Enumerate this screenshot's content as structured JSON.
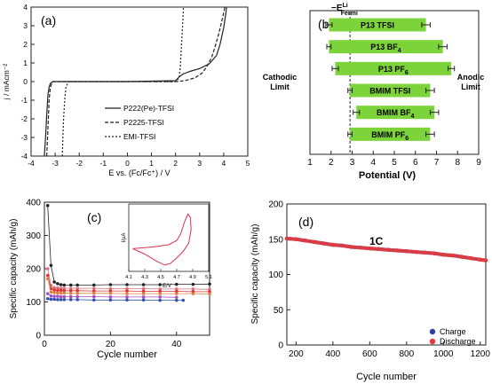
{
  "chart_data": [
    {
      "panel_label": "(a)",
      "type": "line",
      "xlabel": "E vs. (Fc/Fc⁺) / V",
      "ylabel": "j / mAcm⁻²",
      "xlim": [
        -4,
        5
      ],
      "ylim": [
        -4,
        4
      ],
      "xticks": [
        "-4",
        "-3",
        "-2",
        "-1",
        "0",
        "1",
        "2",
        "3",
        "4",
        "5"
      ],
      "yticks": [
        "-4",
        "-3",
        "-2",
        "-1",
        "0",
        "1",
        "2",
        "3",
        "4"
      ],
      "legend_placement": "bottom-right",
      "series": [
        {
          "name": "P222(Pe)-TFSI",
          "style": "solid",
          "x": [
            -3.45,
            -3.4,
            -3.35,
            -3.3,
            -3.25,
            -3.2,
            -3.1,
            -2.5,
            0.0,
            2.0,
            2.15,
            2.3,
            2.6,
            3.0,
            3.4,
            3.7,
            3.85,
            4.0,
            4.08,
            4.12
          ],
          "y": [
            -4.0,
            -3.0,
            -1.8,
            -0.7,
            -0.3,
            -0.1,
            0.0,
            0.0,
            0.0,
            0.05,
            0.25,
            0.4,
            0.55,
            0.7,
            0.95,
            1.4,
            2.0,
            2.9,
            3.6,
            4.0
          ]
        },
        {
          "name": "P2225-TFSI",
          "style": "dashed",
          "x": [
            -3.35,
            -3.3,
            -3.25,
            -3.2,
            -3.1,
            -2.5,
            0.0,
            2.0,
            2.4,
            2.8,
            3.1,
            3.3,
            3.5,
            3.65,
            3.8,
            3.95,
            4.05
          ],
          "y": [
            -4.0,
            -2.5,
            -1.0,
            -0.3,
            0.0,
            0.0,
            0.0,
            0.0,
            0.05,
            0.2,
            0.45,
            0.8,
            1.3,
            1.9,
            2.6,
            3.4,
            4.0
          ]
        },
        {
          "name": "EMI-TFSI",
          "style": "dotted",
          "x": [
            -2.7,
            -2.68,
            -2.65,
            -2.6,
            -2.55,
            -2.45,
            -2.0,
            0.0,
            2.0,
            2.15,
            2.2,
            2.25,
            2.3,
            2.33
          ],
          "y": [
            -4.0,
            -3.0,
            -2.0,
            -0.9,
            -0.3,
            0.0,
            0.0,
            0.0,
            0.0,
            0.2,
            0.8,
            2.0,
            3.2,
            4.0
          ]
        }
      ]
    },
    {
      "panel_label": "(b)",
      "type": "bar",
      "orientation": "horizontal",
      "xlabel": "Potential (V)",
      "xlim": [
        1,
        9
      ],
      "xticks": [
        "1",
        "2",
        "3",
        "4",
        "5",
        "6",
        "7",
        "8",
        "9"
      ],
      "grid": false,
      "bar_color": "#7dd43a",
      "fermi_label": "E",
      "fermi_superscript": "Li",
      "fermi_subscript": "Fermi",
      "fermi_value": 2.9,
      "cathodic_label": [
        "Cathodic",
        "Limit"
      ],
      "anodic_label": [
        "Anodic",
        "Limit"
      ],
      "categories": [
        {
          "main": "P13 TFSI",
          "sub": ""
        },
        {
          "main": "P13 BF",
          "sub": "4"
        },
        {
          "main": "P13 PF",
          "sub": "6"
        },
        {
          "main": "BMIM TFSI",
          "sub": ""
        },
        {
          "main": "BMIM BF",
          "sub": "4"
        },
        {
          "main": "BMIM PF",
          "sub": "6"
        }
      ],
      "cathodic_limit": [
        1.9,
        1.9,
        2.2,
        2.9,
        3.2,
        2.9
      ],
      "anodic_limit": [
        6.5,
        7.3,
        7.7,
        6.7,
        6.9,
        6.7
      ],
      "cathodic_error": [
        0.15,
        0.1,
        0.15,
        0.1,
        0.15,
        0.1
      ],
      "anodic_error": [
        0.2,
        0.2,
        0.15,
        0.2,
        0.2,
        0.2
      ]
    },
    {
      "panel_label": "(c)",
      "type": "scatter",
      "xlabel": "Cycle number",
      "ylabel": "Specific capacity (mAh/g)",
      "xlim": [
        0,
        50
      ],
      "ylim": [
        0,
        400
      ],
      "xticks": [
        "0",
        "20",
        "40"
      ],
      "yticks": [
        "0",
        "100",
        "200",
        "300",
        "400"
      ],
      "series": [
        {
          "color": "#222222",
          "x": [
            1,
            2,
            3,
            4,
            5,
            6,
            8,
            10,
            15,
            20,
            25,
            30,
            35,
            40,
            45,
            50
          ],
          "y": [
            390,
            210,
            160,
            155,
            152,
            151,
            151,
            151,
            151,
            152,
            152,
            152,
            152,
            153,
            153,
            154
          ]
        },
        {
          "color": "#d9707a",
          "x": [
            1,
            2,
            3,
            4,
            5,
            6,
            8,
            10,
            15,
            20,
            25,
            30,
            35,
            40,
            45,
            50
          ],
          "y": [
            200,
            150,
            143,
            142,
            141,
            141,
            141,
            141,
            141,
            140,
            140,
            140,
            139,
            139,
            139,
            138
          ]
        },
        {
          "color": "#e03030",
          "x": [
            1,
            2,
            3,
            4,
            5,
            6,
            8,
            10,
            15,
            20,
            25,
            30,
            35,
            40,
            45,
            50
          ],
          "y": [
            180,
            140,
            136,
            135,
            135,
            134,
            134,
            134,
            133,
            133,
            133,
            132,
            132,
            132,
            131,
            131
          ]
        },
        {
          "color": "#e08040",
          "x": [
            1,
            2,
            3,
            4,
            5,
            6,
            8,
            10,
            15,
            20,
            25,
            30,
            35,
            40,
            45,
            50
          ],
          "y": [
            170,
            130,
            128,
            127,
            127,
            127,
            126,
            126,
            126,
            126,
            125,
            125,
            125,
            125,
            125,
            124
          ]
        },
        {
          "color": "#a050c0",
          "x": [
            1,
            2,
            3,
            4,
            5,
            6,
            8,
            10,
            15,
            20,
            25,
            30,
            35,
            40
          ],
          "y": [
            125,
            118,
            117,
            117,
            116,
            116,
            116,
            116,
            116,
            115,
            115,
            115,
            115,
            114
          ]
        },
        {
          "color": "#3050b0",
          "x": [
            1,
            2,
            3,
            4,
            5,
            6,
            8,
            10,
            15,
            20,
            25,
            30,
            35,
            40,
            42
          ],
          "y": [
            110,
            108,
            108,
            107,
            107,
            107,
            107,
            107,
            106,
            106,
            106,
            106,
            105,
            105,
            105
          ]
        }
      ],
      "inset": {
        "type": "line",
        "xlabel": "E/V",
        "ylabel": "I/μA",
        "xlim": [
          4.1,
          5.1
        ],
        "xticks": [
          "4.1",
          "4.3",
          "4.5",
          "4.7",
          "4.9",
          "5.1"
        ],
        "color": "#e03050",
        "loop": [
          {
            "x": 4.15,
            "y": 0.35
          },
          {
            "x": 4.4,
            "y": 0.38
          },
          {
            "x": 4.6,
            "y": 0.42
          },
          {
            "x": 4.7,
            "y": 0.5
          },
          {
            "x": 4.75,
            "y": 0.62
          },
          {
            "x": 4.8,
            "y": 0.85
          },
          {
            "x": 4.84,
            "y": 0.98
          },
          {
            "x": 4.87,
            "y": 0.92
          },
          {
            "x": 4.88,
            "y": 0.7
          },
          {
            "x": 4.85,
            "y": 0.45
          },
          {
            "x": 4.78,
            "y": 0.3
          },
          {
            "x": 4.7,
            "y": 0.18
          },
          {
            "x": 4.62,
            "y": 0.08
          },
          {
            "x": 4.55,
            "y": 0.05
          },
          {
            "x": 4.45,
            "y": 0.12
          },
          {
            "x": 4.3,
            "y": 0.25
          },
          {
            "x": 4.15,
            "y": 0.35
          }
        ]
      }
    },
    {
      "panel_label": "(d)",
      "type": "scatter",
      "annotation": "1C",
      "xlabel": "Cycle number",
      "ylabel": "Specific capacity (mAh/g)",
      "xlim": [
        150,
        1230
      ],
      "ylim": [
        0,
        200
      ],
      "xticks": [
        "200",
        "400",
        "600",
        "800",
        "1000",
        "1200"
      ],
      "yticks": [
        "0",
        "50",
        "100",
        "150",
        "200"
      ],
      "legend_placement": "bottom-right",
      "series": [
        {
          "name": "Charge",
          "color": "#2e3fa0",
          "x": [
            150,
            200,
            250,
            300,
            350,
            400,
            450,
            500,
            550,
            600,
            650,
            700,
            750,
            800,
            850,
            900,
            950,
            1000,
            1050,
            1100,
            1150,
            1200,
            1230
          ],
          "y": [
            151,
            150,
            148,
            146,
            144,
            142,
            141,
            139,
            138,
            137,
            136,
            135,
            134,
            133,
            132,
            131,
            130,
            128,
            127,
            125,
            123,
            121,
            120
          ]
        },
        {
          "name": "Discharge",
          "color": "#e8393a",
          "x": [
            150,
            200,
            250,
            300,
            350,
            400,
            450,
            500,
            550,
            600,
            650,
            700,
            750,
            800,
            850,
            900,
            950,
            1000,
            1050,
            1100,
            1150,
            1200,
            1230
          ],
          "y": [
            151,
            150,
            148,
            146,
            144,
            142,
            141,
            139,
            138,
            137,
            136,
            135,
            134,
            133,
            132,
            131,
            130,
            128,
            127,
            125,
            123,
            121,
            120
          ]
        }
      ]
    }
  ]
}
